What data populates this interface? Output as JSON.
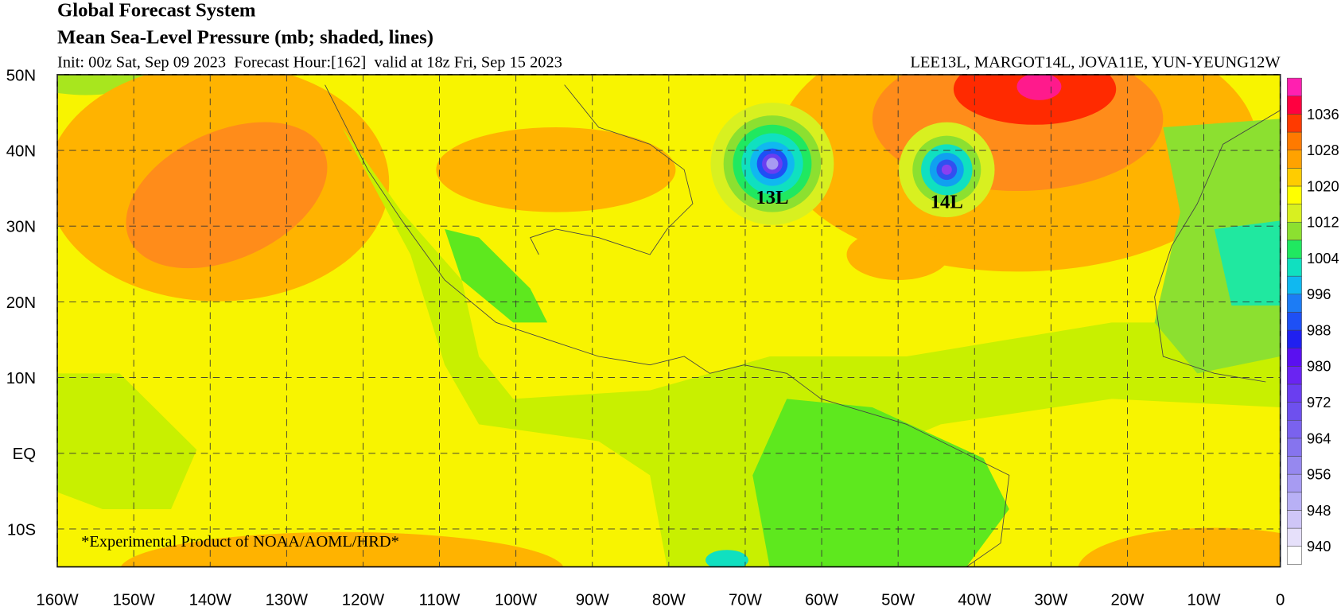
{
  "header": {
    "title": "Global Forecast System",
    "subtitle": "Mean Sea-Level Pressure (mb; shaded, lines)",
    "init": "Init: 00z Sat, Sep 09 2023  Forecast Hour:[162]  valid at 18z Fri, Sep 15 2023",
    "storms": "LEE13L, MARGOT14L, JOVA11E, YUN-YEUNG12W"
  },
  "map": {
    "xlim": [
      -160,
      0
    ],
    "ylim": [
      -15,
      50
    ],
    "xticks": [
      {
        "value": -160,
        "label": "160W"
      },
      {
        "value": -150,
        "label": "150W"
      },
      {
        "value": -140,
        "label": "140W"
      },
      {
        "value": -130,
        "label": "130W"
      },
      {
        "value": -120,
        "label": "120W"
      },
      {
        "value": -110,
        "label": "110W"
      },
      {
        "value": -100,
        "label": "100W"
      },
      {
        "value": -90,
        "label": "90W"
      },
      {
        "value": -80,
        "label": "80W"
      },
      {
        "value": -70,
        "label": "70W"
      },
      {
        "value": -60,
        "label": "60W"
      },
      {
        "value": -50,
        "label": "50W"
      },
      {
        "value": -40,
        "label": "40W"
      },
      {
        "value": -30,
        "label": "30W"
      },
      {
        "value": -20,
        "label": "20W"
      },
      {
        "value": -10,
        "label": "10W"
      },
      0
    ],
    "yticks": [
      {
        "value": 50,
        "label": "50N"
      },
      {
        "value": 40,
        "label": "40N"
      },
      {
        "value": 30,
        "label": "30N"
      },
      {
        "value": 20,
        "label": "20N"
      },
      {
        "value": 10,
        "label": "10N"
      },
      {
        "value": 0,
        "label": "EQ"
      },
      {
        "value": -10,
        "label": "10S"
      }
    ],
    "storm_labels": [
      "13L",
      "14L"
    ],
    "credit": "*Experimental Product of NOAA/AOML/HRD*"
  },
  "colorbar": {
    "lim": [
      936,
      1044
    ],
    "labels": [
      1036,
      1028,
      1020,
      1012,
      1004,
      996,
      988,
      980,
      972,
      964,
      956,
      948,
      940
    ],
    "colors": [
      "#ffffff",
      "#e6e0fa",
      "#cfc6f7",
      "#b8b0f5",
      "#a79bf2",
      "#9688ef",
      "#8674ee",
      "#7a62ee",
      "#6e50ee",
      "#6a3ef0",
      "#6a24f2",
      "#5a10f0",
      "#2020f0",
      "#1e50f5",
      "#1c7cf5",
      "#10b8f0",
      "#10e0c0",
      "#20e860",
      "#8ce030",
      "#d8f020",
      "#ffff00",
      "#ffcc00",
      "#ffa200",
      "#ff7a00",
      "#ff3a00",
      "#ff0040",
      "#ff20b0"
    ]
  }
}
